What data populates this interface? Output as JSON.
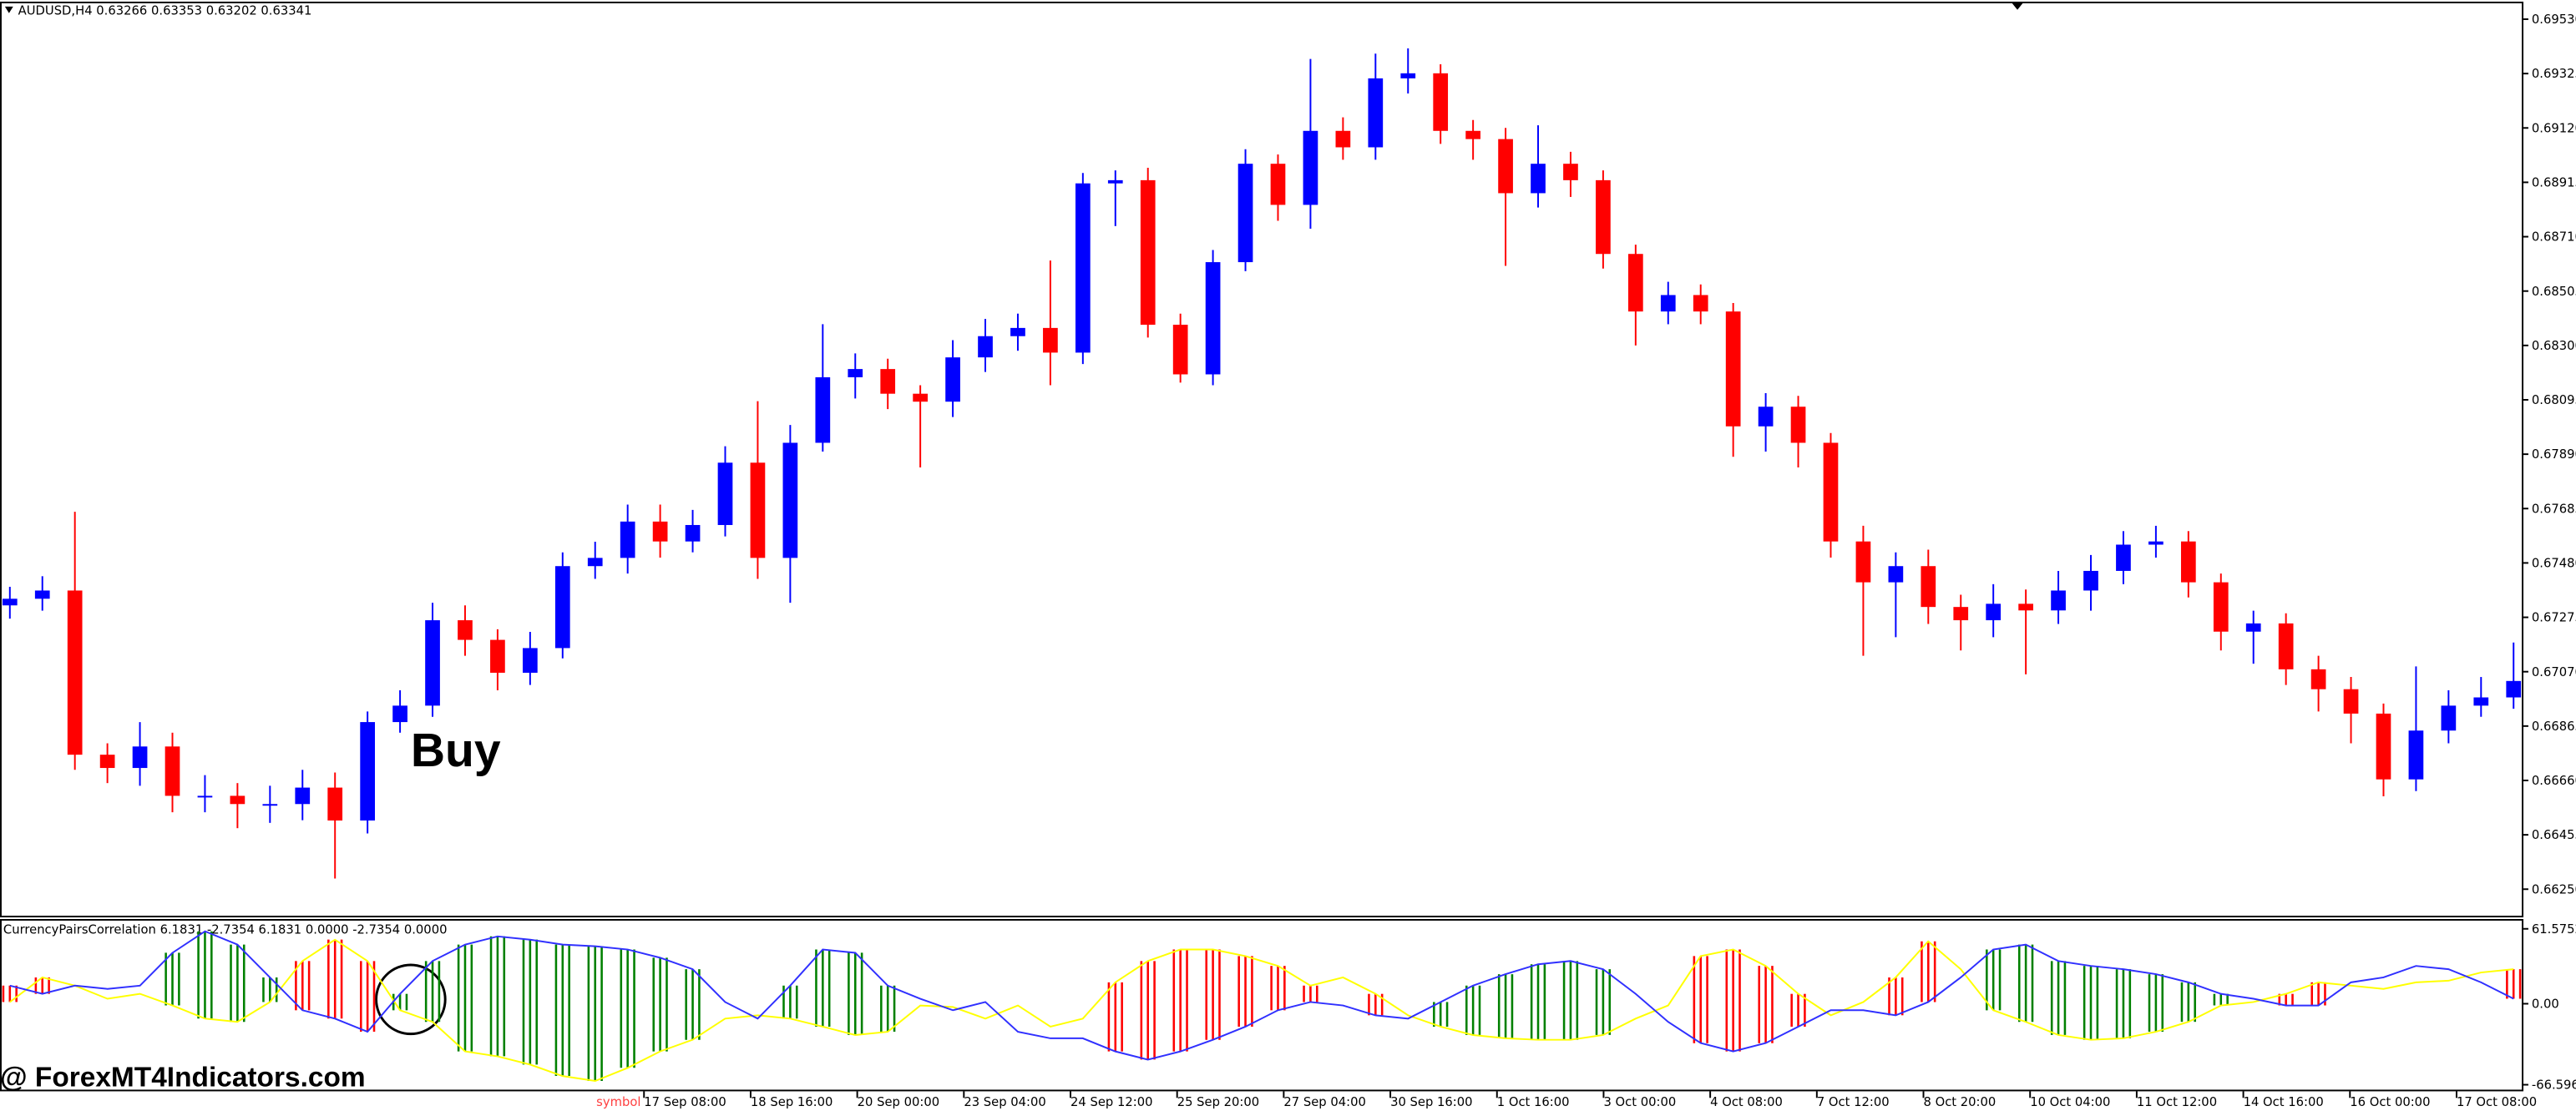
{
  "chart_data": [
    {
      "type": "candlestick",
      "title": "AUDUSD,H4  0.63266 0.63353 0.63202 0.63341",
      "annotation": "Buy",
      "watermark": "@ ForexMT4Indicators.com",
      "up_color": "#0000ff",
      "down_color": "#ff0000",
      "open": [
        0.6732,
        0.67345,
        0.67376,
        0.66757,
        0.66707,
        0.66788,
        0.66602,
        0.66602,
        0.66571,
        0.66571,
        0.66633,
        0.66509,
        0.6688,
        0.66942,
        0.67264,
        0.6719,
        0.67066,
        0.67159,
        0.67468,
        0.67499,
        0.67636,
        0.67561,
        0.67623,
        0.67858,
        0.67499,
        0.67933,
        0.6818,
        0.68211,
        0.68118,
        0.68088,
        0.68255,
        0.68335,
        0.68366,
        0.68273,
        0.68911,
        0.68923,
        0.68378,
        0.68191,
        0.68614,
        0.68985,
        0.6883,
        0.69109,
        0.69047,
        0.69307,
        0.69326,
        0.69109,
        0.69078,
        0.68874,
        0.68985,
        0.68923,
        0.68645,
        0.68428,
        0.6849,
        0.68428,
        0.67995,
        0.68069,
        0.67933,
        0.67561,
        0.67407,
        0.67468,
        0.67314,
        0.67264,
        0.67326,
        0.67301,
        0.67376,
        0.6745,
        0.67549,
        0.67561,
        0.67407,
        0.67221,
        0.67252,
        0.67079,
        0.67004,
        0.66912,
        0.66664,
        0.66848,
        0.66942,
        0.66973
      ],
      "high": [
        0.6739,
        0.6743,
        0.67673,
        0.668,
        0.6688,
        0.6684,
        0.6668,
        0.6665,
        0.6664,
        0.667,
        0.6669,
        0.6692,
        0.67,
        0.6733,
        0.6732,
        0.6723,
        0.6722,
        0.6752,
        0.6756,
        0.677,
        0.677,
        0.6768,
        0.6792,
        0.6809,
        0.68,
        0.6838,
        0.6827,
        0.6825,
        0.6815,
        0.6832,
        0.684,
        0.6842,
        0.6862,
        0.6895,
        0.6896,
        0.6897,
        0.6842,
        0.6866,
        0.6904,
        0.6902,
        0.6938,
        0.6916,
        0.694,
        0.6942,
        0.6936,
        0.6915,
        0.6912,
        0.6913,
        0.6903,
        0.6896,
        0.6868,
        0.6854,
        0.6853,
        0.6846,
        0.6812,
        0.6811,
        0.6797,
        0.6762,
        0.6752,
        0.6753,
        0.6736,
        0.674,
        0.6738,
        0.6745,
        0.6751,
        0.676,
        0.6762,
        0.676,
        0.6744,
        0.673,
        0.6729,
        0.6713,
        0.6705,
        0.6695,
        0.6709,
        0.67,
        0.6705,
        0.6718
      ],
      "low": [
        0.6727,
        0.673,
        0.667,
        0.6665,
        0.6664,
        0.6654,
        0.6654,
        0.6648,
        0.665,
        0.6651,
        0.6629,
        0.6646,
        0.6684,
        0.669,
        0.6713,
        0.67,
        0.6702,
        0.6712,
        0.6742,
        0.6744,
        0.675,
        0.6752,
        0.6758,
        0.6742,
        0.6733,
        0.679,
        0.681,
        0.6806,
        0.6784,
        0.6803,
        0.682,
        0.6828,
        0.6815,
        0.6823,
        0.6875,
        0.6833,
        0.6816,
        0.6815,
        0.6858,
        0.6877,
        0.6874,
        0.69,
        0.69,
        0.6925,
        0.6906,
        0.69,
        0.686,
        0.6882,
        0.6886,
        0.6859,
        0.683,
        0.6838,
        0.6838,
        0.6788,
        0.679,
        0.6784,
        0.675,
        0.6713,
        0.672,
        0.6725,
        0.6715,
        0.672,
        0.6706,
        0.6725,
        0.673,
        0.674,
        0.675,
        0.6735,
        0.6715,
        0.671,
        0.6702,
        0.6692,
        0.668,
        0.666,
        0.6662,
        0.668,
        0.669,
        0.6693
      ],
      "close": [
        0.67345,
        0.67376,
        0.66757,
        0.66707,
        0.66788,
        0.66602,
        0.66602,
        0.66571,
        0.66571,
        0.66633,
        0.66509,
        0.6688,
        0.66942,
        0.67264,
        0.6719,
        0.67066,
        0.67159,
        0.67468,
        0.67499,
        0.67636,
        0.67561,
        0.67623,
        0.67858,
        0.67499,
        0.67933,
        0.6818,
        0.68211,
        0.68118,
        0.68088,
        0.68255,
        0.68335,
        0.68366,
        0.68273,
        0.68911,
        0.68923,
        0.68378,
        0.68191,
        0.68614,
        0.68985,
        0.6883,
        0.69109,
        0.69047,
        0.69307,
        0.69326,
        0.69109,
        0.69078,
        0.68874,
        0.68985,
        0.68923,
        0.68645,
        0.68428,
        0.6849,
        0.68428,
        0.67995,
        0.68069,
        0.67933,
        0.67561,
        0.67407,
        0.67468,
        0.67314,
        0.67264,
        0.67326,
        0.67301,
        0.67376,
        0.6745,
        0.67549,
        0.67561,
        0.67407,
        0.67221,
        0.67252,
        0.67079,
        0.67004,
        0.66912,
        0.66664,
        0.66848,
        0.66942,
        0.66973,
        0.67035
      ],
      "ylim": [
        0.6615,
        0.6959
      ],
      "yticks": [
        {
          "value": 0.6953,
          "label": "0.69530"
        },
        0.69325,
        {
          "value": 0.6912,
          "label": "0.69120"
        },
        0.68915,
        {
          "value": 0.6871,
          "label": "0.68710"
        },
        0.68505,
        {
          "value": 0.683,
          "label": "0.68300"
        },
        0.68095,
        {
          "value": 0.6789,
          "label": "0.67890"
        },
        0.67685,
        {
          "value": 0.6748,
          "label": "0.67480"
        },
        0.67275,
        {
          "value": 0.6707,
          "label": "0.67070"
        },
        0.66865,
        {
          "value": 0.6666,
          "label": "0.66660"
        },
        0.66455,
        {
          "value": 0.6625,
          "label": "0.66250"
        }
      ],
      "symbol_label": "symbol",
      "x_labels": [
        "17 Sep 08:00",
        "18 Sep 16:00",
        "20 Sep 00:00",
        "23 Sep 04:00",
        "24 Sep 12:00",
        "25 Sep 20:00",
        "27 Sep 04:00",
        "30 Sep 16:00",
        "1 Oct 16:00",
        "3 Oct 00:00",
        "4 Oct 08:00",
        "7 Oct 12:00",
        "8 Oct 20:00",
        "10 Oct 04:00",
        "11 Oct 12:00",
        "14 Oct 16:00",
        "16 Oct 00:00",
        "17 Oct 08:00"
      ]
    },
    {
      "type": "indicator",
      "title": "CurrencyPairsCorrelation 6.1831 -2.7354 6.1831 0.0000 -2.7354 0.0000",
      "ylim": [
        -72,
        68.3
      ],
      "yticks": [
        61.5752,
        {
          "value": 0,
          "label": "0.00"
        },
        -66.5968
      ],
      "series": [
        {
          "color": "#3030ff",
          "values": [
            14.9,
            8.1,
            14.9,
            12.2,
            14.9,
            41.9,
            59.5,
            48.6,
            21.6,
            -5.4,
            -12.2,
            -23.0,
            8.1,
            35.1,
            48.6,
            55.4,
            52.7,
            48.6,
            47.3,
            44.6,
            37.8,
            28.4,
            1.4,
            -12.2,
            14.9,
            44.6,
            41.9,
            14.9,
            4.1,
            -5.4,
            1.4,
            -23.0,
            -28.4,
            -28.4,
            -39.2,
            -45.9,
            -39.2,
            -29.7,
            -18.9,
            -5.4,
            1.4,
            -1.4,
            -9.5,
            -12.2,
            1.4,
            14.9,
            24.3,
            32.4,
            35.1,
            28.4,
            8.1,
            -14.9,
            -32.4,
            -39.2,
            -32.4,
            -18.9,
            -5.4,
            -5.4,
            -9.5,
            1.4,
            21.6,
            44.6,
            48.6,
            35.1,
            31.1,
            28.4,
            24.3,
            17.6,
            8.1,
            4.1,
            -1.4,
            -1.4,
            17.6,
            21.6,
            31.1,
            28.4,
            17.6,
            4.1
          ]
        },
        {
          "color": "#ffff00",
          "values": [
            1.4,
            21.6,
            14.9,
            4.1,
            8.1,
            -1.4,
            -12.2,
            -14.9,
            1.4,
            35.1,
            52.7,
            35.1,
            -5.4,
            -14.9,
            -39.2,
            -43.2,
            -50.0,
            -59.4,
            -63.5,
            -52.7,
            -39.2,
            -29.7,
            -12.2,
            -9.5,
            -12.2,
            -18.9,
            -25.7,
            -23.0,
            -1.4,
            -2.7,
            -12.2,
            -1.4,
            -18.9,
            -12.2,
            17.6,
            35.1,
            44.6,
            44.6,
            39.2,
            31.1,
            14.9,
            21.6,
            8.1,
            -9.5,
            -18.9,
            -25.7,
            -28.4,
            -29.7,
            -29.7,
            -25.7,
            -12.2,
            -1.4,
            39.2,
            44.6,
            31.1,
            8.1,
            -9.5,
            1.4,
            21.6,
            51.3,
            28.4,
            -5.4,
            -14.9,
            -25.7,
            -29.7,
            -28.4,
            -23.0,
            -14.9,
            -1.4,
            1.4,
            8.1,
            17.6,
            14.9,
            12.2,
            17.6,
            18.9,
            25.7,
            28.4
          ]
        }
      ],
      "bar_colors": [
        "#ff0000",
        "#ff0000",
        null,
        null,
        null,
        "#008000",
        "#008000",
        "#008000",
        "#008000",
        "#ff0000",
        "#ff0000",
        "#ff0000",
        "#008000",
        "#008000",
        "#008000",
        "#008000",
        "#008000",
        "#008000",
        "#008000",
        "#008000",
        "#008000",
        "#008000",
        null,
        null,
        "#008000",
        "#008000",
        "#008000",
        "#008000",
        null,
        null,
        null,
        null,
        null,
        null,
        "#ff0000",
        "#ff0000",
        "#ff0000",
        "#ff0000",
        "#ff0000",
        "#ff0000",
        "#ff0000",
        null,
        "#ff0000",
        null,
        "#008000",
        "#008000",
        "#008000",
        "#008000",
        "#008000",
        "#008000",
        null,
        null,
        "#ff0000",
        "#ff0000",
        "#ff0000",
        "#ff0000",
        null,
        null,
        "#ff0000",
        "#ff0000",
        null,
        "#008000",
        "#008000",
        "#008000",
        "#008000",
        "#008000",
        "#008000",
        "#008000",
        "#008000",
        null,
        "#ff0000",
        "#ff0000",
        null,
        null,
        null,
        null,
        null,
        "#ff0000"
      ]
    }
  ]
}
